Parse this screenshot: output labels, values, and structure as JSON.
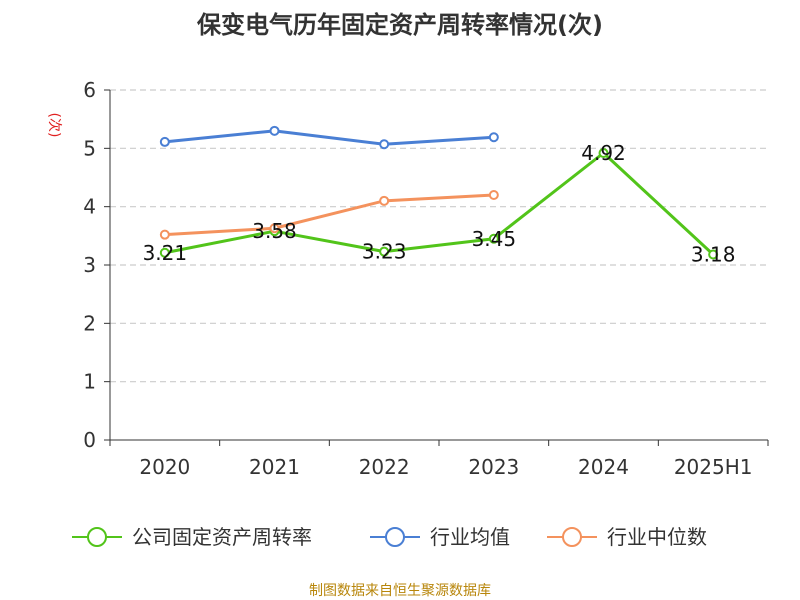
{
  "chart_data": {
    "type": "line",
    "title": "保变电气历年固定资产周转率情况(次)",
    "ylabel": "(次)",
    "xlabel": "",
    "categories": [
      "2020",
      "2021",
      "2022",
      "2023",
      "2024",
      "2025H1"
    ],
    "ylim": [
      0,
      6
    ],
    "yticks": [
      0,
      1,
      2,
      3,
      4,
      5,
      6
    ],
    "grid": true,
    "legend_position": "bottom",
    "series": [
      {
        "name": "公司固定资产周转率",
        "color": "#52c41a",
        "values": [
          3.21,
          3.58,
          3.23,
          3.45,
          4.92,
          3.18
        ],
        "labels": [
          "3.21",
          "3.58",
          "3.23",
          "3.45",
          "4.92",
          "3.18"
        ]
      },
      {
        "name": "行业均值",
        "color": "#4a7fd4",
        "values": [
          5.11,
          5.3,
          5.07,
          5.19,
          null,
          null
        ]
      },
      {
        "name": "行业中位数",
        "color": "#f4925d",
        "values": [
          3.52,
          3.63,
          4.1,
          4.2,
          null,
          null
        ]
      }
    ]
  },
  "source": "制图数据来自恒生聚源数据库"
}
